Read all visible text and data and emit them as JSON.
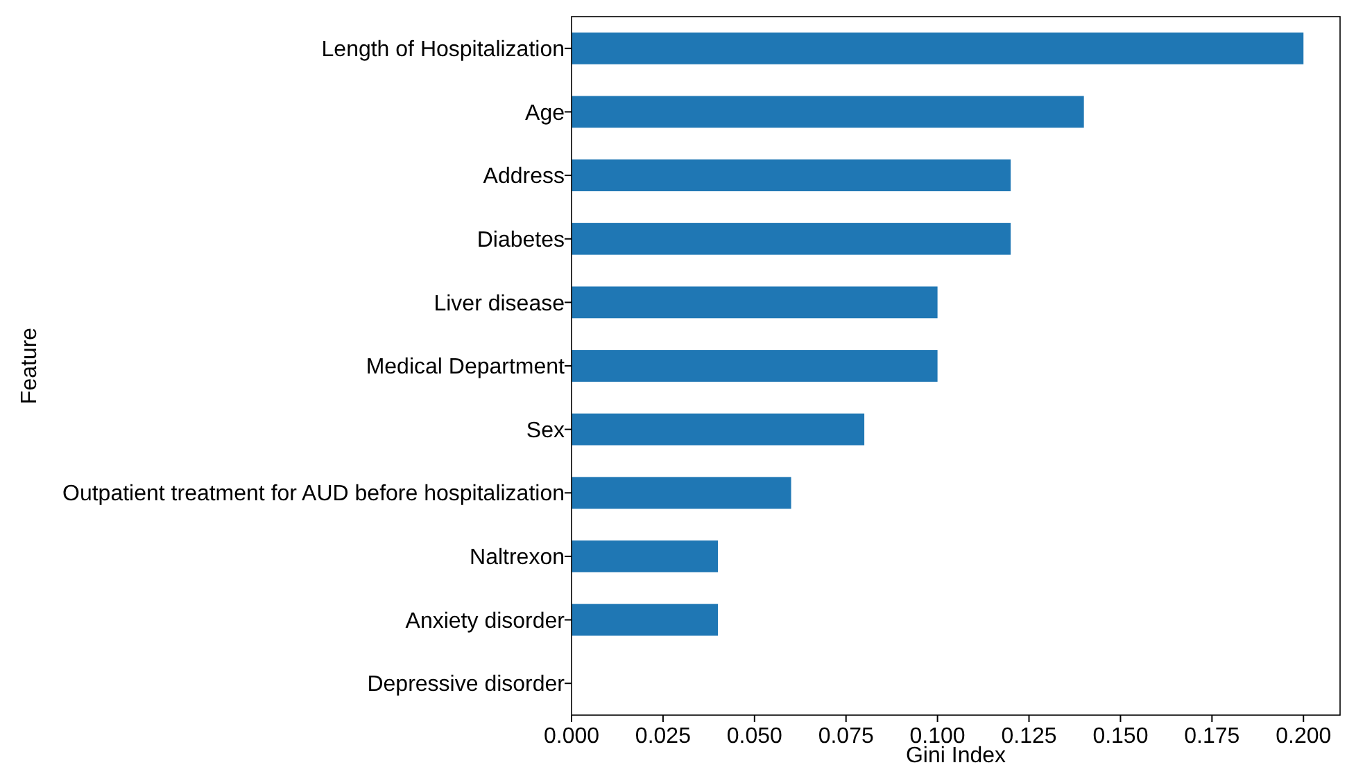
{
  "chart_data": {
    "type": "bar",
    "orientation": "horizontal",
    "xlabel": "Gini Index",
    "ylabel": "Feature",
    "categories": [
      "Length of Hospitalization",
      "Age",
      "Address",
      "Diabetes",
      "Liver disease",
      "Medical Department",
      "Sex",
      "Outpatient treatment for AUD before hospitalization",
      "Naltrexon",
      "Anxiety disorder",
      "Depressive disorder"
    ],
    "values": [
      0.2,
      0.14,
      0.12,
      0.12,
      0.1,
      0.1,
      0.08,
      0.06,
      0.04,
      0.04,
      0.0
    ],
    "color": "#1f77b4",
    "xlim": [
      0,
      0.21
    ],
    "xticks": [
      {
        "value": 0,
        "label": "0.000"
      },
      {
        "value": 0.025,
        "label": "0.025"
      },
      {
        "value": 0.05,
        "label": "0.050"
      },
      {
        "value": 0.075,
        "label": "0.075"
      },
      {
        "value": 0.1,
        "label": "0.100"
      },
      {
        "value": 0.125,
        "label": "0.125"
      },
      {
        "value": 0.15,
        "label": "0.150"
      },
      {
        "value": 0.175,
        "label": "0.175"
      },
      {
        "value": 0.2,
        "label": "0.200"
      }
    ],
    "grid": false
  }
}
